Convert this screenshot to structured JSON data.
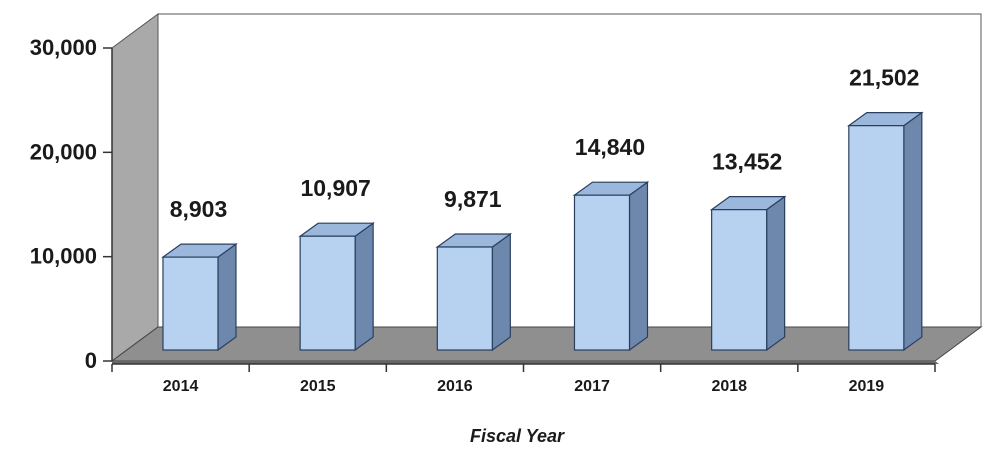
{
  "chart_data": {
    "type": "bar",
    "style": "3d-column",
    "categories": [
      "2014",
      "2015",
      "2016",
      "2017",
      "2018",
      "2019"
    ],
    "values": [
      8903,
      10907,
      9871,
      14840,
      13452,
      21502
    ],
    "data_labels": [
      "8,903",
      "10,907",
      "9,871",
      "14,840",
      "13,452",
      "21,502"
    ],
    "yticks": [
      0,
      10000,
      20000,
      30000
    ],
    "ytick_labels": [
      "0",
      "10,000",
      "20,000",
      "30,000"
    ],
    "ylim": [
      0,
      30000
    ],
    "xlabel": "Fiscal Year",
    "ylabel": "",
    "title": "",
    "grid": false,
    "legend": "none",
    "colors": {
      "bar_front": "#b7d2f0",
      "bar_side": "#6e88ad",
      "bar_top": "#9bb8dc",
      "bar_edge": "#2a3f5f",
      "wall": "#a9a9a9",
      "floor": "#8f8f8f",
      "panel": "#ffffff"
    }
  }
}
